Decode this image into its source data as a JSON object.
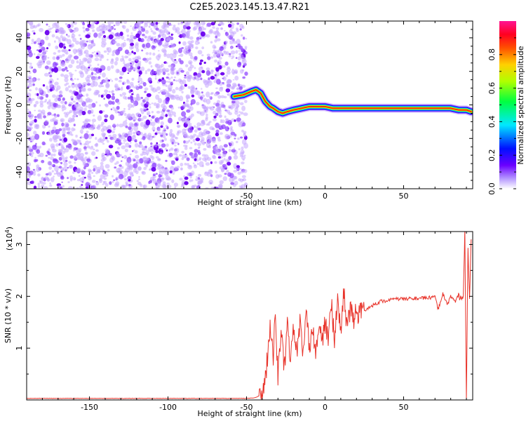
{
  "title": "C2E5.2023.145.13.47.R21",
  "chart_data": [
    {
      "type": "heatmap",
      "xlabel": "Height of straight line (km)",
      "ylabel": "Frequency (Hz)",
      "xlim": [
        -190,
        94
      ],
      "ylim": [
        -50,
        50
      ],
      "xticks": [
        -150,
        -100,
        -50,
        0,
        50
      ],
      "yticks": [
        -40,
        -20,
        0,
        20,
        40
      ],
      "noise_region_x": [
        -190,
        -52
      ],
      "signal_trace": {
        "x": [
          -58,
          -52,
          -47,
          -44,
          -41,
          -38,
          -35,
          -33,
          -30,
          -27,
          -24,
          -20,
          -15,
          -10,
          -5,
          0,
          5,
          10,
          20,
          30,
          40,
          50,
          60,
          70,
          80,
          85,
          90,
          93
        ],
        "y": [
          5,
          6,
          8,
          9,
          7,
          2,
          -1,
          -2,
          -4,
          -5,
          -4,
          -3,
          -2,
          -1,
          -1,
          -1,
          -2,
          -2,
          -2,
          -2,
          -2,
          -2,
          -2,
          -2,
          -2,
          -3,
          -3,
          -4
        ]
      },
      "colorbar": {
        "label": "Normalized spectral amplitude",
        "range": [
          0.0,
          1.0
        ],
        "ticks": [
          "0.0",
          "0.2",
          "0.4",
          "0.6",
          "0.8"
        ],
        "colormap": [
          "#ffffff",
          "#8b00ff",
          "#0000ff",
          "#00ffff",
          "#00ff00",
          "#ffff00",
          "#ff8000",
          "#ff0000",
          "#ff1493"
        ]
      }
    },
    {
      "type": "line",
      "xlabel": "Height of straight line (km)",
      "ylabel": "SNR (10 * v/v)",
      "scale_label": "(x10",
      "scale_exp": "4",
      "scale_close": ")",
      "xlim": [
        -190,
        94
      ],
      "ylim": [
        0,
        3.25
      ],
      "xticks": [
        -150,
        -100,
        -50,
        0,
        50
      ],
      "yticks": [
        1,
        2,
        3
      ],
      "color": "#e8332a",
      "series": [
        {
          "name": "SNR",
          "x": [
            -190,
            -50,
            -45,
            -40,
            -38,
            -36,
            -35,
            -33,
            -32,
            -30,
            -28,
            -26,
            -24,
            -22,
            -20,
            -18,
            -16,
            -14,
            -12,
            -10,
            -8,
            -6,
            -4,
            -2,
            0,
            2,
            4,
            6,
            8,
            10,
            12,
            14,
            16,
            18,
            20,
            22,
            24,
            26,
            28,
            30,
            35,
            40,
            45,
            50,
            55,
            60,
            65,
            70,
            72,
            75,
            78,
            80,
            83,
            85,
            88,
            89,
            90,
            91,
            92,
            93
          ],
          "y": [
            0.03,
            0.03,
            0.04,
            0.1,
            0.45,
            1.0,
            1.55,
            0.7,
            1.7,
            0.5,
            1.3,
            0.6,
            1.4,
            0.8,
            1.45,
            0.85,
            1.5,
            0.9,
            1.6,
            1.0,
            1.5,
            0.9,
            1.45,
            1.1,
            1.45,
            1.2,
            1.85,
            1.2,
            1.9,
            1.3,
            2.1,
            1.4,
            1.75,
            1.55,
            1.7,
            1.65,
            1.75,
            1.72,
            1.8,
            1.82,
            1.9,
            1.92,
            1.95,
            1.95,
            1.96,
            1.96,
            1.97,
            1.98,
            1.75,
            2.05,
            1.85,
            2.0,
            1.9,
            2.02,
            1.95,
            3.25,
            0.05,
            2.9,
            2.0,
            3.1
          ]
        }
      ]
    }
  ]
}
